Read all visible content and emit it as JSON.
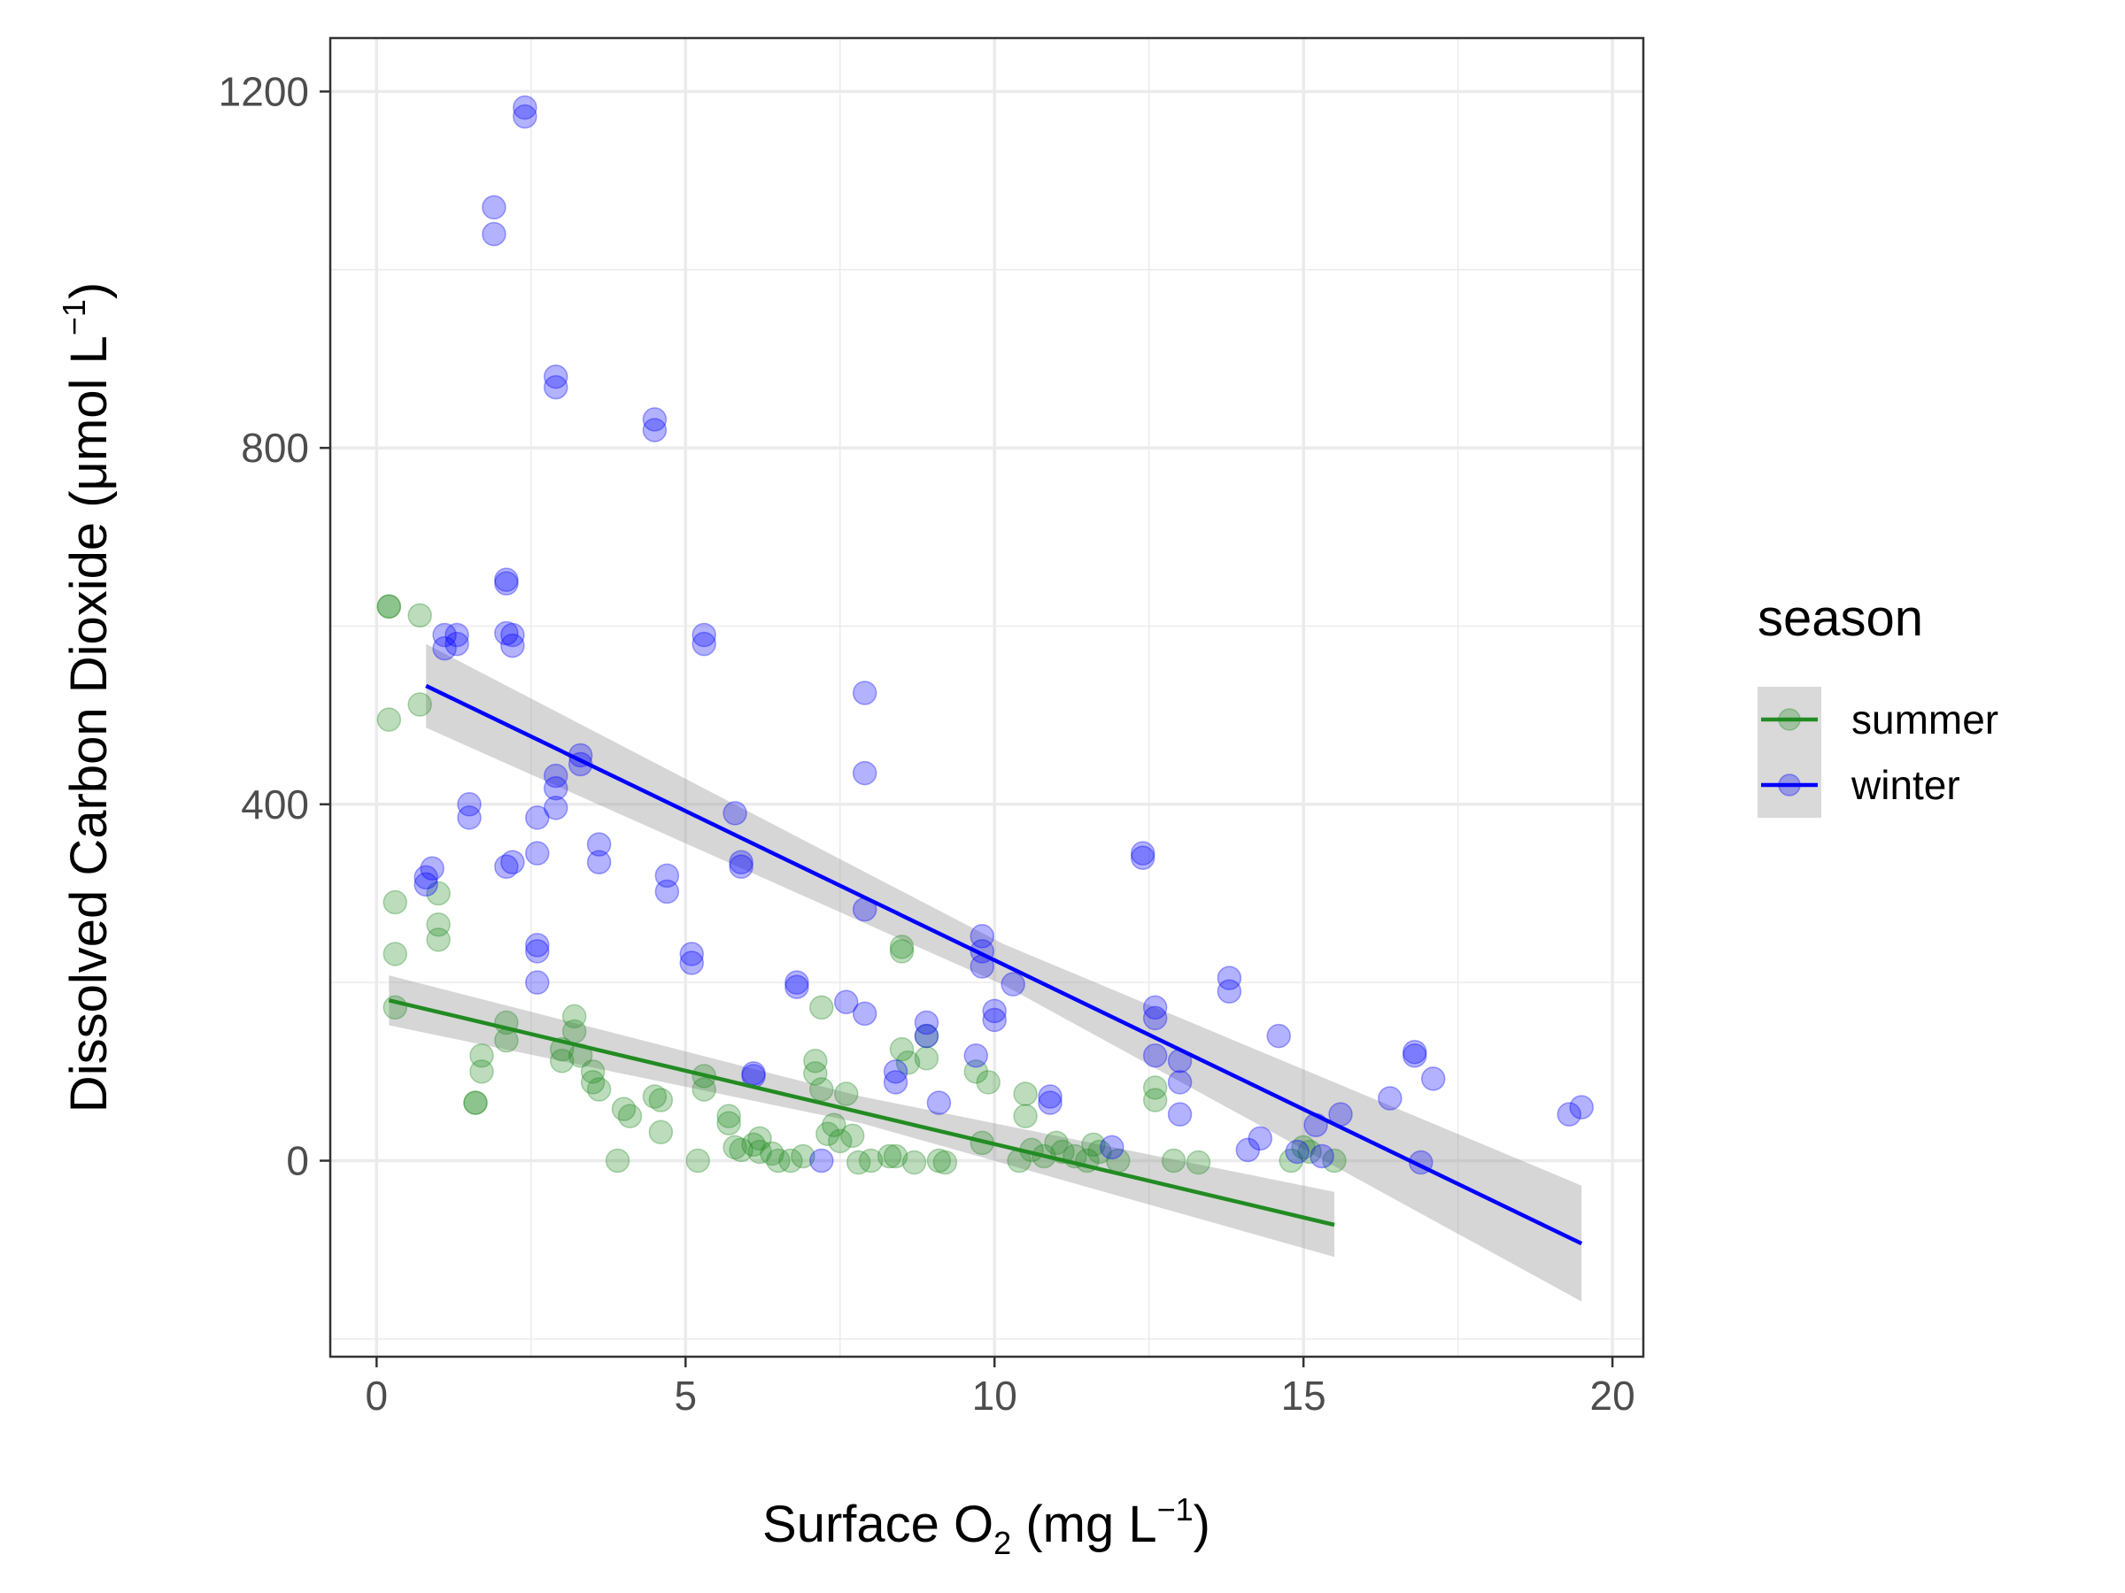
{
  "chart_data": {
    "type": "scatter",
    "title": "",
    "xlabel": {
      "pre": "Surface O",
      "sub": "2",
      "mid": " (mg L",
      "sup": "−1",
      "post": ")"
    },
    "ylabel": {
      "pre": "Dissolved Carbon Dioxide (",
      "mu": "μ",
      "mid": "mol L",
      "sup": "−1",
      "post": ")"
    },
    "xlim": [
      -0.75,
      20.5
    ],
    "ylim": [
      -220,
      1260
    ],
    "xticks": [
      0,
      5,
      10,
      15,
      20
    ],
    "yticks": [
      0,
      400,
      800,
      1200
    ],
    "x_minor": [
      2.5,
      7.5,
      12.5,
      17.5
    ],
    "y_minor": [
      -200,
      200,
      600,
      1000
    ],
    "grid": true,
    "legend": {
      "title": "season",
      "position": "right"
    },
    "series": [
      {
        "name": "summer",
        "color": "#228B22",
        "points": [
          [
            0.2,
            622
          ],
          [
            0.2,
            622
          ],
          [
            0.2,
            495
          ],
          [
            0.3,
            290
          ],
          [
            0.3,
            232
          ],
          [
            0.3,
            172
          ],
          [
            0.7,
            612
          ],
          [
            0.7,
            512
          ],
          [
            1.0,
            300
          ],
          [
            1.0,
            265
          ],
          [
            1.0,
            248
          ],
          [
            1.6,
            65
          ],
          [
            1.6,
            65
          ],
          [
            1.7,
            118
          ],
          [
            1.7,
            100
          ],
          [
            2.1,
            155
          ],
          [
            2.1,
            135
          ],
          [
            3.0,
            125
          ],
          [
            3.0,
            112
          ],
          [
            3.2,
            162
          ],
          [
            3.2,
            145
          ],
          [
            3.3,
            118
          ],
          [
            3.5,
            100
          ],
          [
            3.5,
            88
          ],
          [
            3.6,
            80
          ],
          [
            3.9,
            0
          ],
          [
            4.0,
            58
          ],
          [
            4.1,
            50
          ],
          [
            4.5,
            72
          ],
          [
            4.6,
            68
          ],
          [
            4.6,
            32
          ],
          [
            5.2,
            0
          ],
          [
            5.3,
            95
          ],
          [
            5.3,
            80
          ],
          [
            5.7,
            50
          ],
          [
            5.7,
            42
          ],
          [
            5.8,
            15
          ],
          [
            5.9,
            12
          ],
          [
            6.1,
            18
          ],
          [
            6.2,
            25
          ],
          [
            6.2,
            10
          ],
          [
            6.4,
            8
          ],
          [
            6.5,
            0
          ],
          [
            6.7,
            0
          ],
          [
            6.9,
            5
          ],
          [
            7.1,
            112
          ],
          [
            7.1,
            98
          ],
          [
            7.2,
            80
          ],
          [
            7.2,
            172
          ],
          [
            7.3,
            30
          ],
          [
            7.4,
            40
          ],
          [
            7.5,
            22
          ],
          [
            7.6,
            75
          ],
          [
            7.7,
            28
          ],
          [
            7.8,
            -2
          ],
          [
            8.0,
            0
          ],
          [
            8.3,
            5
          ],
          [
            8.4,
            5
          ],
          [
            8.5,
            235
          ],
          [
            8.5,
            240
          ],
          [
            8.5,
            125
          ],
          [
            8.6,
            110
          ],
          [
            8.7,
            -2
          ],
          [
            8.9,
            140
          ],
          [
            8.9,
            115
          ],
          [
            9.1,
            0
          ],
          [
            9.2,
            -2
          ],
          [
            9.7,
            100
          ],
          [
            9.8,
            20
          ],
          [
            9.9,
            88
          ],
          [
            10.4,
            0
          ],
          [
            10.5,
            75
          ],
          [
            10.5,
            50
          ],
          [
            10.6,
            12
          ],
          [
            10.8,
            5
          ],
          [
            11.0,
            20
          ],
          [
            11.1,
            10
          ],
          [
            11.3,
            5
          ],
          [
            11.5,
            0
          ],
          [
            11.6,
            18
          ],
          [
            11.7,
            10
          ],
          [
            12.0,
            0
          ],
          [
            12.6,
            82
          ],
          [
            12.6,
            68
          ],
          [
            12.9,
            0
          ],
          [
            13.3,
            -2
          ],
          [
            14.8,
            0
          ],
          [
            15.0,
            15
          ],
          [
            15.1,
            10
          ],
          [
            15.5,
            0
          ]
        ]
      },
      {
        "name": "winter",
        "color": "#0000FF",
        "points": [
          [
            0.8,
            310
          ],
          [
            0.8,
            318
          ],
          [
            0.9,
            328
          ],
          [
            1.1,
            590
          ],
          [
            1.1,
            575
          ],
          [
            1.3,
            590
          ],
          [
            1.3,
            580
          ],
          [
            1.5,
            400
          ],
          [
            1.5,
            385
          ],
          [
            1.9,
            1070
          ],
          [
            1.9,
            1040
          ],
          [
            2.1,
            652
          ],
          [
            2.1,
            648
          ],
          [
            2.1,
            592
          ],
          [
            2.2,
            590
          ],
          [
            2.2,
            578
          ],
          [
            2.2,
            335
          ],
          [
            2.1,
            330
          ],
          [
            2.4,
            1182
          ],
          [
            2.4,
            1172
          ],
          [
            2.6,
            385
          ],
          [
            2.6,
            345
          ],
          [
            2.6,
            242
          ],
          [
            2.6,
            235
          ],
          [
            2.6,
            200
          ],
          [
            2.9,
            880
          ],
          [
            2.9,
            868
          ],
          [
            2.9,
            432
          ],
          [
            2.9,
            418
          ],
          [
            2.9,
            396
          ],
          [
            3.3,
            455
          ],
          [
            3.3,
            445
          ],
          [
            3.6,
            355
          ],
          [
            3.6,
            335
          ],
          [
            4.5,
            832
          ],
          [
            4.5,
            820
          ],
          [
            4.7,
            320
          ],
          [
            4.7,
            302
          ],
          [
            5.1,
            232
          ],
          [
            5.1,
            222
          ],
          [
            5.3,
            590
          ],
          [
            5.3,
            580
          ],
          [
            5.8,
            390
          ],
          [
            5.9,
            335
          ],
          [
            5.9,
            330
          ],
          [
            6.1,
            98
          ],
          [
            6.1,
            95
          ],
          [
            6.8,
            200
          ],
          [
            6.8,
            195
          ],
          [
            7.2,
            0
          ],
          [
            7.6,
            178
          ],
          [
            7.9,
            165
          ],
          [
            7.9,
            525
          ],
          [
            7.9,
            435
          ],
          [
            7.9,
            282
          ],
          [
            8.4,
            100
          ],
          [
            8.4,
            88
          ],
          [
            8.9,
            155
          ],
          [
            8.9,
            140
          ],
          [
            9.1,
            65
          ],
          [
            9.7,
            118
          ],
          [
            9.8,
            252
          ],
          [
            9.8,
            235
          ],
          [
            9.8,
            218
          ],
          [
            10.0,
            168
          ],
          [
            10.0,
            158
          ],
          [
            10.3,
            198
          ],
          [
            10.9,
            72
          ],
          [
            10.9,
            65
          ],
          [
            11.9,
            15
          ],
          [
            12.4,
            345
          ],
          [
            12.4,
            340
          ],
          [
            12.6,
            172
          ],
          [
            12.6,
            160
          ],
          [
            12.6,
            118
          ],
          [
            13.0,
            112
          ],
          [
            13.0,
            88
          ],
          [
            13.0,
            52
          ],
          [
            13.8,
            205
          ],
          [
            13.8,
            190
          ],
          [
            14.1,
            12
          ],
          [
            14.3,
            25
          ],
          [
            14.6,
            140
          ],
          [
            14.9,
            10
          ],
          [
            15.2,
            40
          ],
          [
            15.3,
            5
          ],
          [
            15.6,
            52
          ],
          [
            16.4,
            70
          ],
          [
            16.8,
            122
          ],
          [
            16.8,
            118
          ],
          [
            16.9,
            -2
          ],
          [
            17.1,
            92
          ],
          [
            19.3,
            52
          ],
          [
            19.5,
            60
          ]
        ]
      }
    ],
    "fits": [
      {
        "name": "summer",
        "color": "#228B22",
        "x": [
          0.2,
          15.5
        ],
        "y": [
          180,
          -72
        ],
        "band": [
          [
            0.2,
            208,
            152
          ],
          [
            7.85,
            72,
            42
          ],
          [
            15.5,
            -35,
            -108
          ]
        ]
      },
      {
        "name": "winter",
        "color": "#0000FF",
        "x": [
          0.8,
          19.5
        ],
        "y": [
          533,
          -93
        ],
        "band": [
          [
            0.8,
            580,
            486
          ],
          [
            10.15,
            243,
            197
          ],
          [
            19.5,
            -28,
            -158
          ]
        ]
      }
    ]
  }
}
